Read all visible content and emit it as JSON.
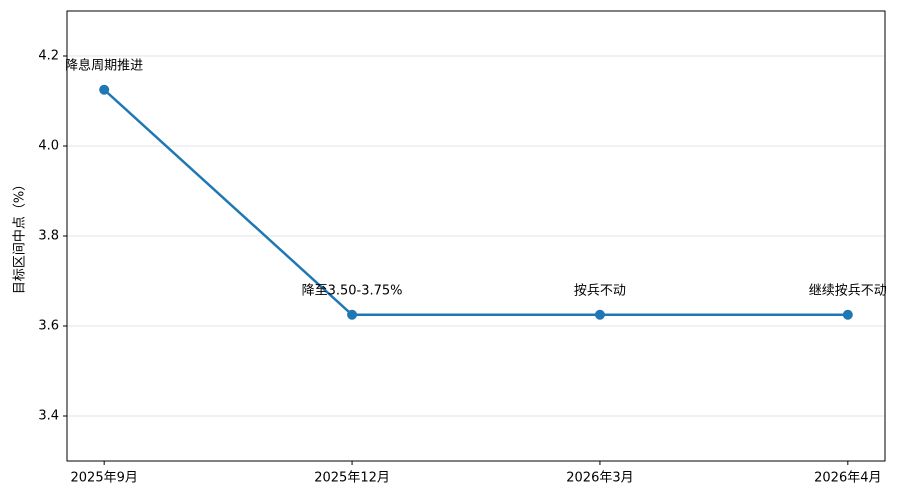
{
  "chart_data": {
    "type": "line",
    "y_label": "目标区间中点（%）",
    "categories": [
      "2025年9月",
      "2025年12月",
      "2026年3月",
      "2026年4月"
    ],
    "series": [
      {
        "color": "#1f77b4",
        "values": [
          4.125,
          3.625,
          3.625,
          3.625
        ]
      }
    ],
    "annotations": [
      "降息周期推进",
      "降至3.50-3.75%",
      "按兵不动",
      "继续按兵不动"
    ],
    "ylim": [
      3.3,
      4.3
    ],
    "yticks": [
      3.4,
      3.6,
      3.8,
      {
        "value": 4,
        "label": "4.0"
      },
      4.2
    ],
    "grid": true
  }
}
